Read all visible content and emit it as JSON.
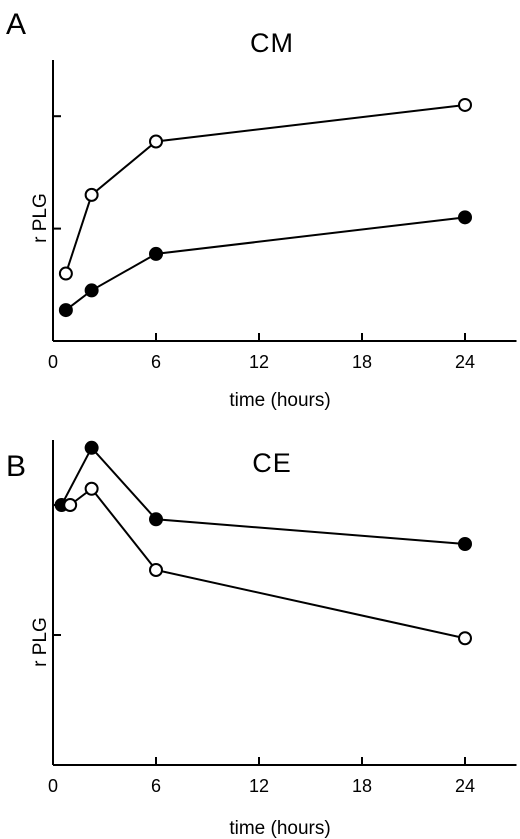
{
  "chart_data": [
    {
      "type": "line",
      "panel_label": "A",
      "title": "CM",
      "xlabel": "time (hours)",
      "ylabel": "r PLG",
      "xlim": [
        0,
        27
      ],
      "x_ticks": [
        0,
        6,
        12,
        18,
        24
      ],
      "ylim": [
        0,
        5
      ],
      "y_ticks_labeled": false,
      "y_tick_values": [
        2,
        4
      ],
      "grid": false,
      "series": [
        {
          "marker": "open",
          "x": [
            0.75,
            2.25,
            6,
            24
          ],
          "y": [
            1.2,
            2.6,
            3.55,
            4.2
          ]
        },
        {
          "marker": "filled",
          "x": [
            0.75,
            2.25,
            6,
            24
          ],
          "y": [
            0.55,
            0.9,
            1.55,
            2.2
          ]
        }
      ]
    },
    {
      "type": "line",
      "panel_label": "B",
      "title": "CE",
      "xlabel": "time (hours)",
      "ylabel": "r PLG",
      "xlim": [
        0,
        27
      ],
      "x_ticks": [
        0,
        6,
        12,
        18,
        24
      ],
      "ylim": [
        0,
        5
      ],
      "y_ticks_labeled": false,
      "y_tick_values": [
        2,
        4
      ],
      "grid": false,
      "series": [
        {
          "marker": "filled",
          "x": [
            0.5,
            2.25,
            6,
            24
          ],
          "y": [
            4,
            4.88,
            3.78,
            3.4
          ]
        },
        {
          "marker": "open",
          "x": [
            1,
            2.25,
            6,
            24
          ],
          "y": [
            4,
            4.25,
            3,
            1.95
          ]
        }
      ]
    }
  ]
}
